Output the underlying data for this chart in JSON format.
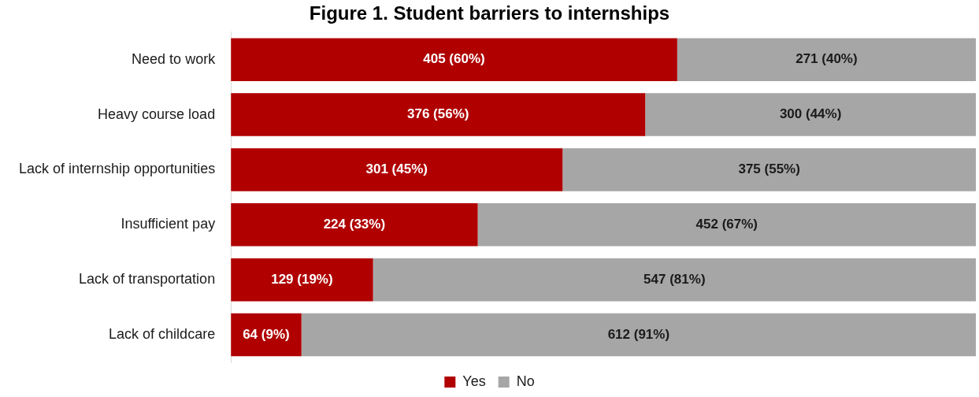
{
  "chart_data": {
    "type": "bar",
    "orientation": "horizontal",
    "stacked": true,
    "title": "Figure 1. Student barriers to internships",
    "categories": [
      "Need to work",
      "Heavy course load",
      "Lack of internship opportunities",
      "Insufficient pay",
      "Lack of transportation",
      "Lack of childcare"
    ],
    "series": [
      {
        "name": "Yes",
        "color": "#b00000",
        "values": [
          405,
          376,
          301,
          224,
          129,
          64
        ],
        "value_labels": [
          "405 (60%)",
          "376 (56%)",
          "301 (45%)",
          "224 (33%)",
          "129 (19%)",
          "64 (9%)"
        ]
      },
      {
        "name": "No",
        "color": "#a6a6a6",
        "values": [
          271,
          300,
          375,
          452,
          547,
          612
        ],
        "value_labels": [
          "271 (40%)",
          "300 (44%)",
          "375 (55%)",
          "452 (67%)",
          "547 (81%)",
          "612 (91%)"
        ]
      }
    ],
    "xlim": [
      0,
      676
    ],
    "tick_labels": "y",
    "grid": false,
    "legend": "bottom"
  }
}
